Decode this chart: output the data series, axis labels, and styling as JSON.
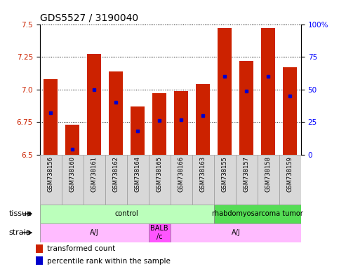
{
  "title": "GDS5527 / 3190040",
  "samples": [
    "GSM738156",
    "GSM738160",
    "GSM738161",
    "GSM738162",
    "GSM738164",
    "GSM738165",
    "GSM738166",
    "GSM738163",
    "GSM738155",
    "GSM738157",
    "GSM738158",
    "GSM738159"
  ],
  "transformed_count": [
    7.08,
    6.73,
    7.27,
    7.14,
    6.87,
    6.97,
    6.99,
    7.04,
    7.47,
    7.22,
    7.47,
    7.17
  ],
  "percentile_rank": [
    32,
    4,
    50,
    40,
    18,
    26,
    27,
    30,
    60,
    49,
    60,
    45
  ],
  "ymin": 6.5,
  "ymax": 7.5,
  "yright_min": 0,
  "yright_max": 100,
  "bar_color": "#cc2200",
  "percentile_color": "#0000cc",
  "bar_width": 0.65,
  "tissue_groups": [
    {
      "label": "control",
      "start": 0,
      "end": 8,
      "color": "#bbffbb"
    },
    {
      "label": "rhabdomyosarcoma tumor",
      "start": 8,
      "end": 12,
      "color": "#55dd55"
    }
  ],
  "strain_groups": [
    {
      "label": "A/J",
      "start": 0,
      "end": 5,
      "color": "#ffbbff"
    },
    {
      "label": "BALB\n/c",
      "start": 5,
      "end": 6,
      "color": "#ff55ff"
    },
    {
      "label": "A/J",
      "start": 6,
      "end": 12,
      "color": "#ffbbff"
    }
  ],
  "legend_items": [
    {
      "label": "transformed count",
      "color": "#cc2200"
    },
    {
      "label": "percentile rank within the sample",
      "color": "#0000cc"
    }
  ],
  "ylabel_left_color": "#cc2200",
  "ylabel_right_color": "#0000ff",
  "title_fontsize": 10,
  "tick_fontsize": 7.5,
  "sample_fontsize": 6,
  "row_label_fontsize": 8,
  "group_fontsize": 7,
  "legend_fontsize": 7.5
}
